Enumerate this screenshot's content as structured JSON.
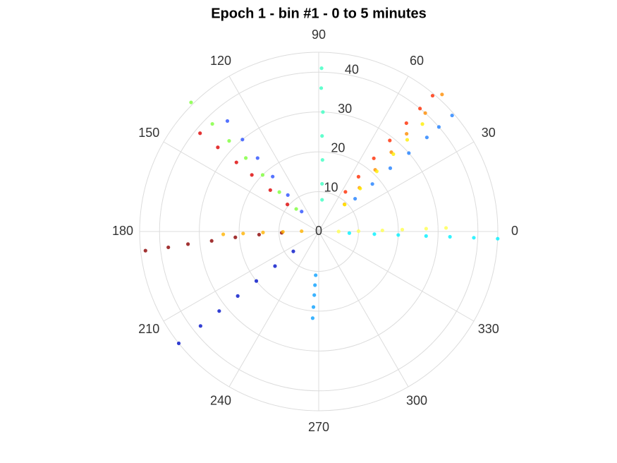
{
  "chart_data": {
    "type": "polar-scatter",
    "title": "Epoch 1 - bin #1 - 0 to 5 minutes",
    "rlim": [
      0,
      45
    ],
    "rticks": [
      0,
      10,
      20,
      30,
      40
    ],
    "thetaticks": [
      0,
      30,
      60,
      90,
      120,
      150,
      180,
      210,
      240,
      270,
      300,
      330
    ],
    "grid": true,
    "series": [
      {
        "color": "#3cffc2",
        "theta": [
          84,
          86,
          87,
          88,
          88,
          89,
          89
        ],
        "r": [
          8,
          12,
          18,
          24,
          30,
          36,
          41
        ]
      },
      {
        "color": "#ff2a00",
        "theta": [
          56,
          54,
          53,
          52,
          51,
          50.5,
          50
        ],
        "r": [
          12,
          17,
          23,
          29,
          35,
          40,
          44.5
        ]
      },
      {
        "color": "#ff8c00",
        "theta": [
          46.5,
          47,
          47.5,
          47.5,
          48,
          48,
          48
        ],
        "r": [
          9.4,
          15,
          21,
          27,
          33,
          40,
          46.3
        ]
      },
      {
        "color": "#ffee00",
        "theta": [
          46,
          46,
          46,
          46,
          46,
          46
        ],
        "r": [
          9.4,
          15,
          21,
          27,
          32,
          37.5
        ]
      },
      {
        "color": "#1f7fff",
        "theta": [
          42,
          41.5,
          41.5,
          41,
          41,
          41,
          41
        ],
        "r": [
          12.3,
          18,
          24,
          30,
          36,
          40,
          44.4
        ]
      },
      {
        "color": "#8b0000",
        "theta": [
          182,
          183,
          184,
          185,
          185.5,
          186,
          186.3
        ],
        "r": [
          9.3,
          15,
          21,
          27,
          33,
          38,
          43.8
        ]
      },
      {
        "color": "#ffb300",
        "theta": [
          179,
          180.5,
          181,
          181.5,
          181.7
        ],
        "r": [
          4.3,
          9,
          14,
          19,
          24
        ]
      },
      {
        "color": "#0010c8",
        "theta": [
          218,
          218.3,
          218.4,
          218.5,
          218.6,
          218.6,
          218.6
        ],
        "r": [
          8.1,
          14,
          20,
          26,
          32,
          38,
          45
        ]
      },
      {
        "color": "#0aa0ff",
        "theta": [
          266,
          266,
          266,
          266,
          266
        ],
        "r": [
          11,
          13.5,
          16,
          19,
          21.8
        ]
      },
      {
        "color": "#00f0ff",
        "theta": [
          357,
          357.3,
          357.5,
          357.6,
          357.7,
          357.7,
          357.7
        ],
        "r": [
          7.7,
          14,
          20,
          27,
          33,
          39,
          45
        ]
      },
      {
        "color": "#ffff50",
        "theta": [
          0,
          0.5,
          1,
          1.3,
          1.5,
          1.6
        ],
        "r": [
          5,
          10,
          16,
          21,
          27,
          32
        ]
      },
      {
        "color": "#7dff3a",
        "theta": [
          135,
          135,
          134.8,
          134.8,
          134.7,
          134.7,
          134.7
        ],
        "r": [
          8,
          14,
          20,
          26,
          32,
          38,
          45.6
        ]
      },
      {
        "color": "#2a50ff",
        "theta": [
          130.6,
          130.3,
          130,
          129.8,
          129.7,
          129.6
        ],
        "r": [
          6.6,
          12,
          18,
          24,
          30,
          36
        ]
      },
      {
        "color": "#dd0000",
        "theta": [
          139.2,
          139.5,
          139.8,
          140,
          140.2,
          140.4
        ],
        "r": [
          10.4,
          16,
          22,
          27,
          33,
          38.7
        ]
      }
    ]
  }
}
